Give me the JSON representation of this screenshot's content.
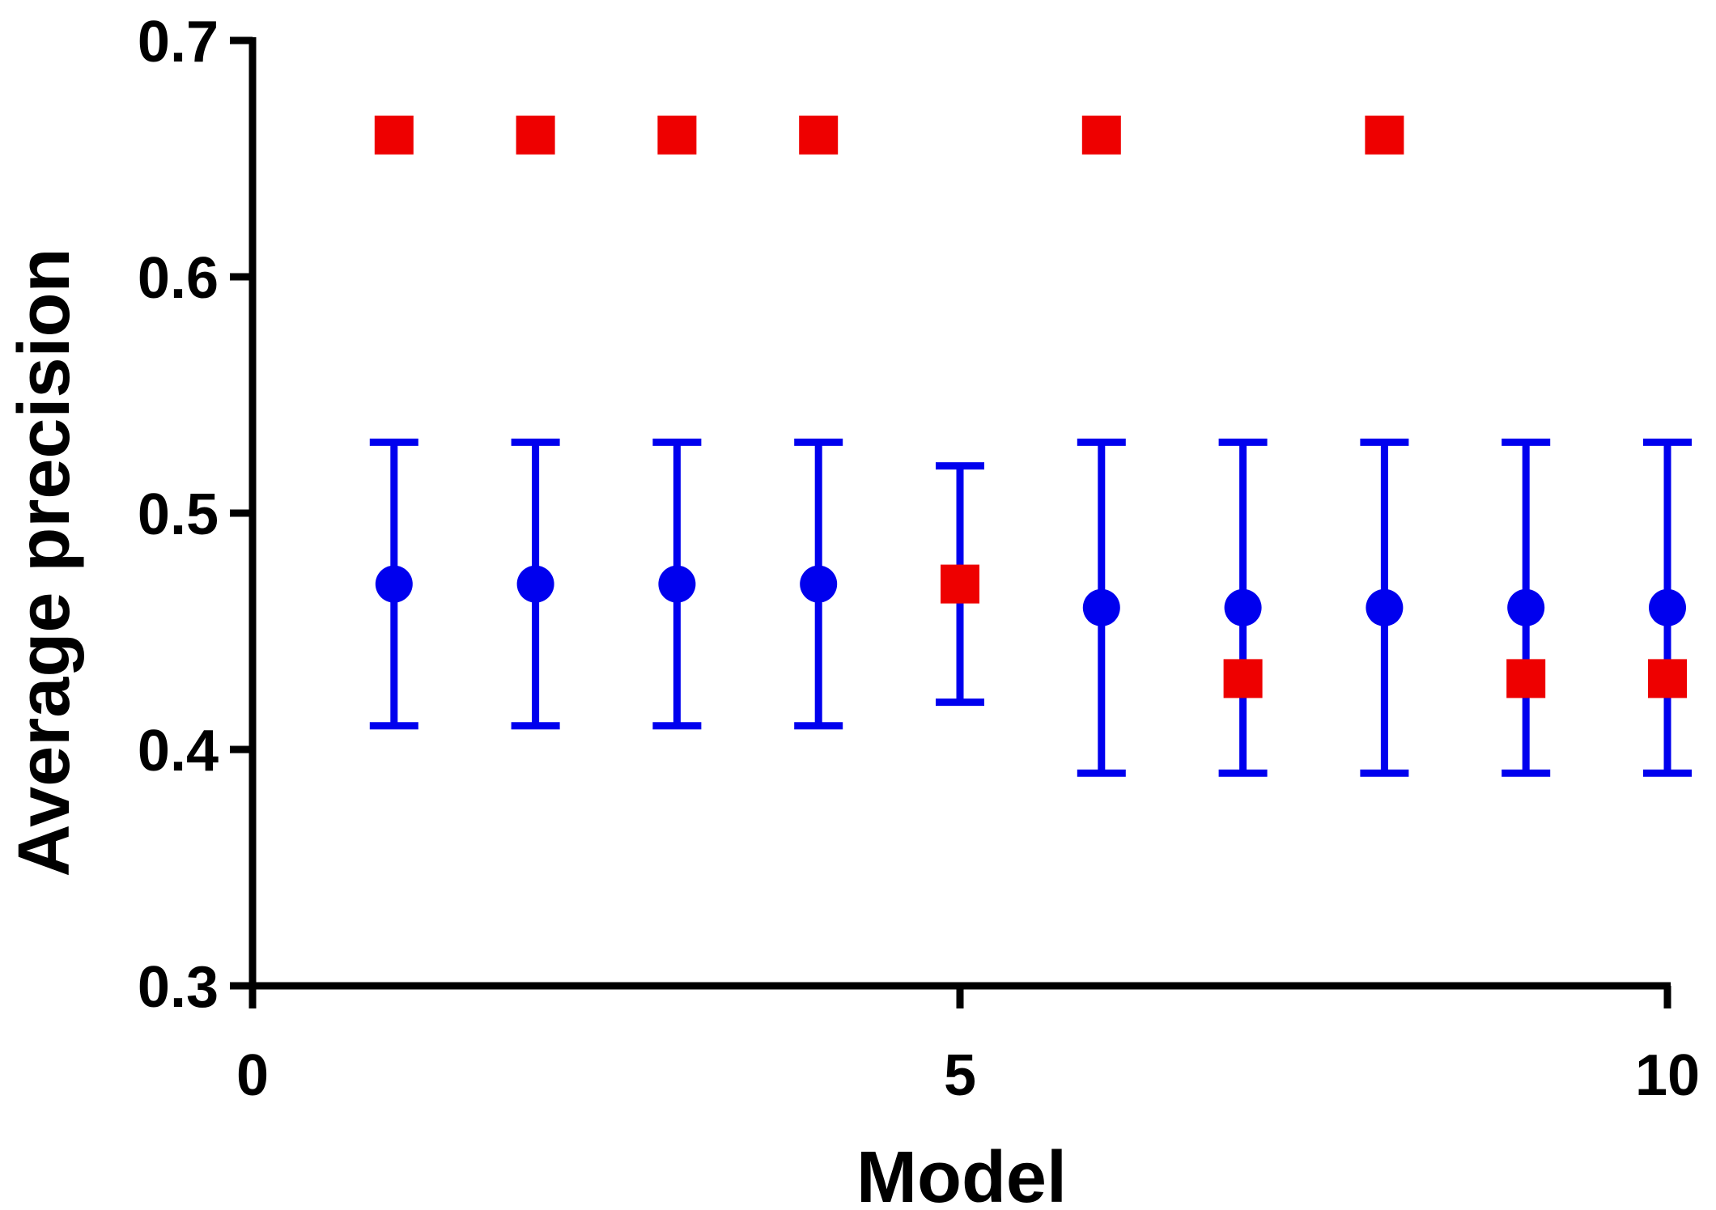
{
  "chart_data": {
    "type": "scatter",
    "xlabel": "Model",
    "ylabel": "Average precision",
    "xlim": [
      0,
      10
    ],
    "ylim": [
      0.3,
      0.7
    ],
    "xticks": [
      0,
      5,
      10
    ],
    "xtick_labels": [
      "0",
      "5",
      "10"
    ],
    "yticks": [
      0.3,
      0.4,
      0.5,
      0.6,
      0.7
    ],
    "ytick_labels": [
      "0.3",
      "0.4",
      "0.5",
      "0.6",
      "0.7"
    ],
    "grid": false,
    "legend": "none",
    "series": [
      {
        "marker": "circle",
        "color": "#0000ee",
        "error_bars": true,
        "x": [
          1,
          2,
          3,
          4,
          5,
          6,
          7,
          8,
          9,
          10
        ],
        "y": [
          0.47,
          0.47,
          0.47,
          0.47,
          null,
          0.46,
          0.46,
          0.46,
          0.46,
          0.46
        ],
        "y_lower": [
          0.41,
          0.41,
          0.41,
          0.41,
          0.42,
          0.39,
          0.39,
          0.39,
          0.39,
          0.39
        ],
        "y_upper": [
          0.53,
          0.53,
          0.53,
          0.53,
          0.52,
          0.53,
          0.53,
          0.53,
          0.53,
          0.53
        ]
      },
      {
        "marker": "square",
        "color": "#ee0000",
        "x": [
          1,
          2,
          3,
          4,
          5,
          6,
          7,
          8,
          9,
          10
        ],
        "y": [
          0.66,
          0.66,
          0.66,
          0.66,
          0.47,
          0.66,
          0.43,
          0.66,
          0.43,
          0.43
        ]
      }
    ]
  }
}
